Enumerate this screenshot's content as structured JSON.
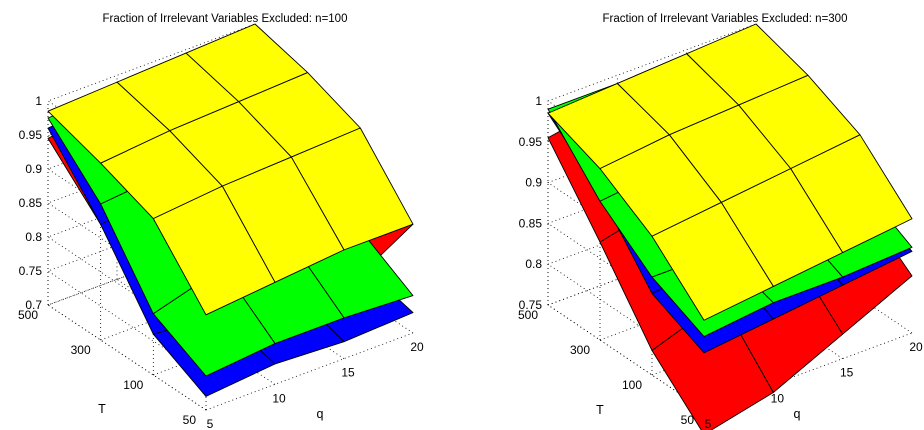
{
  "colors": {
    "yellow": "#ffff00",
    "green": "#00ff00",
    "blue": "#0000ff",
    "red": "#ff0000"
  },
  "chart_data": [
    {
      "type": "surface3d",
      "title": "Fraction of Irrelevant Variables Excluded: n=100",
      "xlabel": "q",
      "ylabel": "T",
      "zlim": [
        0.7,
        1
      ],
      "q": [
        5,
        10,
        15,
        20
      ],
      "T": [
        50,
        100,
        300,
        500
      ],
      "q_tick_labels": [
        "5",
        "10",
        "15",
        "20"
      ],
      "T_tick_labels": [
        "50",
        "100",
        "300",
        "500"
      ],
      "z_tick_labels": [
        "0.7",
        "0.75",
        "0.8",
        "0.85",
        "0.9",
        "0.95",
        "1"
      ],
      "grid": true,
      "surfaces": [
        {
          "color": "red",
          "z": [
            [
              0.72,
              0.74,
              0.8,
              0.86
            ],
            [
              0.77,
              0.79,
              0.86,
              0.9
            ],
            [
              0.87,
              0.91,
              0.93,
              0.95
            ],
            [
              0.945,
              0.96,
              0.97,
              0.975
            ]
          ]
        },
        {
          "color": "blue",
          "z": [
            [
              0.72,
              0.73,
              0.725,
              0.73
            ],
            [
              0.76,
              0.75,
              0.75,
              0.75
            ],
            [
              0.87,
              0.88,
              0.9,
              0.91
            ],
            [
              0.96,
              0.97,
              0.975,
              0.98
            ]
          ]
        },
        {
          "color": "green",
          "z": [
            [
              0.75,
              0.76,
              0.76,
              0.755
            ],
            [
              0.79,
              0.82,
              0.82,
              0.8
            ],
            [
              0.9,
              0.91,
              0.92,
              0.92
            ],
            [
              0.975,
              0.98,
              0.985,
              0.985
            ]
          ]
        },
        {
          "color": "yellow",
          "z": [
            [
              0.84,
              0.85,
              0.86,
              0.86
            ],
            [
              0.93,
              0.94,
              0.945,
              0.95
            ],
            [
              0.96,
              0.97,
              0.975,
              0.98
            ],
            [
              0.985,
              0.99,
              0.995,
              1.0
            ]
          ]
        }
      ]
    },
    {
      "type": "surface3d",
      "title": "Fraction of Irrelevant Variables Excluded: n=300",
      "xlabel": "q",
      "ylabel": "T",
      "zlim": [
        0.75,
        1
      ],
      "q": [
        5,
        10,
        15,
        20
      ],
      "T": [
        50,
        100,
        300,
        500
      ],
      "q_tick_labels": [
        "5",
        "10",
        "15",
        "20"
      ],
      "T_tick_labels": [
        "50",
        "100",
        "300",
        "500"
      ],
      "z_tick_labels": [
        "0.75",
        "0.8",
        "0.85",
        "0.9",
        "0.95",
        "1"
      ],
      "grid": true,
      "surfaces": [
        {
          "color": "red",
          "z": [
            [
              0.72,
              0.74,
              0.78,
              0.82
            ],
            [
              0.78,
              0.81,
              0.84,
              0.87
            ],
            [
              0.87,
              0.89,
              0.91,
              0.93
            ],
            [
              0.955,
              0.97,
              0.98,
              0.985
            ]
          ]
        },
        {
          "color": "blue",
          "z": [
            [
              0.82,
              0.83,
              0.84,
              0.85
            ],
            [
              0.85,
              0.86,
              0.87,
              0.88
            ],
            [
              0.93,
              0.94,
              0.95,
              0.96
            ],
            [
              0.985,
              0.99,
              0.99,
              0.995
            ]
          ]
        },
        {
          "color": "green",
          "z": [
            [
              0.84,
              0.85,
              0.85,
              0.855
            ],
            [
              0.87,
              0.87,
              0.88,
              0.89
            ],
            [
              0.92,
              0.93,
              0.95,
              0.97
            ],
            [
              0.99,
              0.99,
              0.995,
              0.998
            ]
          ]
        },
        {
          "color": "yellow",
          "z": [
            [
              0.86,
              0.87,
              0.88,
              0.89
            ],
            [
              0.92,
              0.93,
              0.94,
              0.95
            ],
            [
              0.96,
              0.97,
              0.975,
              0.98
            ],
            [
              0.985,
              0.99,
              0.995,
              1.0
            ]
          ]
        }
      ]
    }
  ]
}
